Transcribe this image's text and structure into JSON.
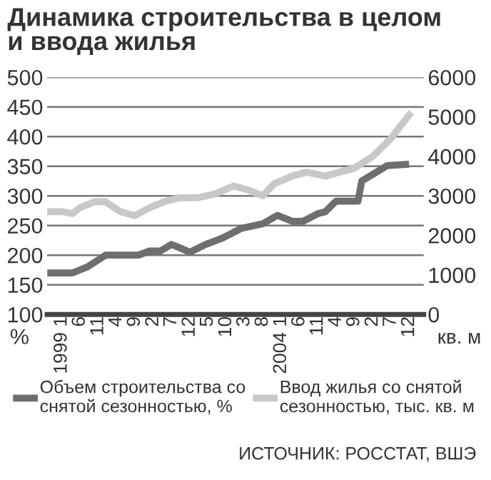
{
  "chart_data": {
    "type": "line",
    "title": "Динамика строительства в целом\nи ввода жилья",
    "ylabel": "%",
    "y2label": "кв. м",
    "xlim": [
      "1998-09",
      "2007-04"
    ],
    "xticks": [
      {
        "value": "1999-01",
        "label": "1999 1"
      },
      {
        "value": "1999-06",
        "label": "6"
      },
      {
        "value": "1999-11",
        "label": "11"
      },
      {
        "value": "2000-04",
        "label": "4"
      },
      {
        "value": "2000-09",
        "label": "9"
      },
      {
        "value": "2001-02",
        "label": "2"
      },
      {
        "value": "2001-07",
        "label": "7"
      },
      {
        "value": "2001-12",
        "label": "12"
      },
      {
        "value": "2002-05",
        "label": "5"
      },
      {
        "value": "2002-10",
        "label": "10"
      },
      {
        "value": "2003-03",
        "label": "3"
      },
      {
        "value": "2003-08",
        "label": "8"
      },
      {
        "value": "2004-01",
        "label": "2004 1"
      },
      {
        "value": "2004-06",
        "label": "6"
      },
      {
        "value": "2004-11",
        "label": "11"
      },
      {
        "value": "2005-04",
        "label": "4"
      },
      {
        "value": "2005-09",
        "label": "9"
      },
      {
        "value": "2006-02",
        "label": "2"
      },
      {
        "value": "2006-07",
        "label": "7"
      },
      {
        "value": "2006-12",
        "label": "12"
      }
    ],
    "ylim": [
      100,
      500
    ],
    "yticks": [
      100,
      150,
      200,
      250,
      300,
      350,
      400,
      450,
      500
    ],
    "y2lim": [
      0,
      6000
    ],
    "y2ticks": [
      0,
      1000,
      2000,
      3000,
      4000,
      5000,
      6000
    ],
    "grid": "y",
    "legend": "bottom",
    "marker": "none",
    "line_style": "solid",
    "series": [
      {
        "name": "Объем строительства со\nснятой сезонностью, %",
        "color": "#6e6e6e",
        "x": [
          "1998-10",
          "1999-04",
          "1999-08",
          "2000-01",
          "2000-05",
          "2000-10",
          "2001-01",
          "2001-04",
          "2001-07",
          "2001-09",
          "2001-12",
          "2002-04",
          "2002-09",
          "2003-02",
          "2003-08",
          "2003-12",
          "2004-04",
          "2004-07",
          "2004-11",
          "2005-01",
          "2005-04",
          "2005-10",
          "2005-11",
          "2006-06",
          "2006-11"
        ],
        "values": [
          170,
          170,
          180,
          200,
          200,
          200,
          207,
          207,
          218,
          213,
          205,
          217,
          229,
          245,
          253,
          267,
          257,
          257,
          270,
          273,
          291,
          291,
          325,
          351,
          353
        ]
      },
      {
        "name": "Ввод жилья со снятой\nсезонностью, тыс. кв. м",
        "color": "#c8c8c8",
        "axis": "y2",
        "x": [
          "1998-10",
          "1999-01",
          "1999-04",
          "1999-06",
          "1999-10",
          "2000-01",
          "2000-05",
          "2000-09",
          "2001-01",
          "2001-05",
          "2001-09",
          "2002-02",
          "2002-07",
          "2002-12",
          "2003-04",
          "2003-08",
          "2003-11",
          "2004-04",
          "2004-08",
          "2005-01",
          "2005-05",
          "2005-09",
          "2006-02",
          "2006-07",
          "2006-12"
        ],
        "values": [
          2600,
          2600,
          2550,
          2700,
          2850,
          2850,
          2600,
          2500,
          2700,
          2850,
          2950,
          2950,
          3050,
          3250,
          3150,
          3000,
          3300,
          3500,
          3600,
          3500,
          3600,
          3700,
          4000,
          4450,
          5050
        ]
      }
    ],
    "annotations": [
      "ИСТОЧНИК: РОССТАТ, ВШЭ"
    ]
  }
}
